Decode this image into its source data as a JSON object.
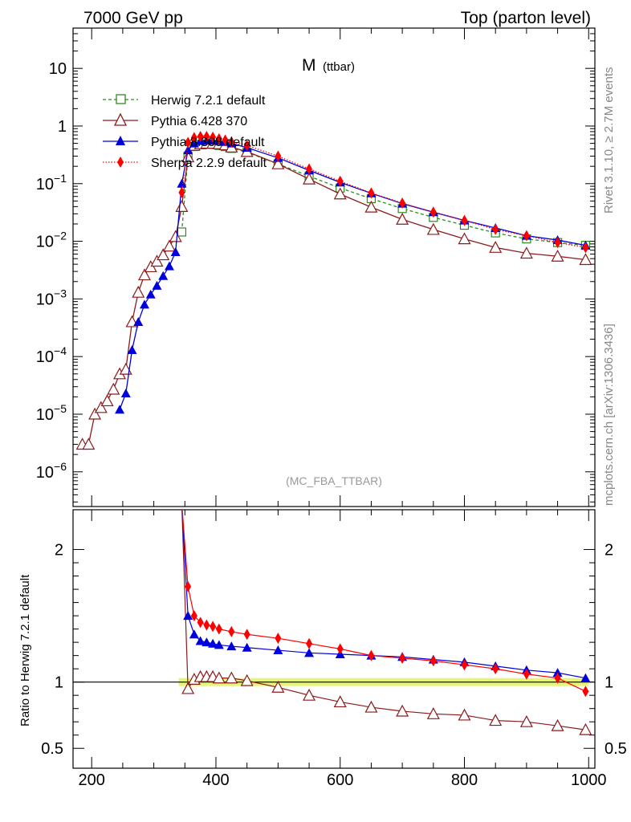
{
  "header": {
    "left": "7000 GeV pp",
    "right": "Top (parton level)"
  },
  "side_labels": {
    "rivet": "Rivet 3.1.10, ≥ 2.7M events",
    "mcplots": "mcplots.cern.ch [arXiv:1306.3436]"
  },
  "observable": {
    "main": "M",
    "sub": "(ttbar)"
  },
  "analysis_tag": "(MC_FBA_TTBAR)",
  "ratio_ylabel": "Ratio to Herwig 7.2.1 default",
  "colors": {
    "herwig": "#2e8b1e",
    "pythia6": "#8b1a1a",
    "pythia8": "#0000dd",
    "sherpa": "#ff0000",
    "band": "#e6f57a"
  },
  "chart_data": [
    {
      "type": "line",
      "panel": "main",
      "yscale": "log",
      "xlim": [
        170,
        1010
      ],
      "ylim": [
        2.5e-07,
        50
      ],
      "y_ticks": [
        {
          "v": 1e-06,
          "m": "10",
          "e": "−6"
        },
        {
          "v": 1e-05,
          "m": "10",
          "e": "−5"
        },
        {
          "v": 0.0001,
          "m": "10",
          "e": "−4"
        },
        {
          "v": 0.001,
          "m": "10",
          "e": "−3"
        },
        {
          "v": 0.01,
          "m": "10",
          "e": "−2"
        },
        {
          "v": 0.1,
          "m": "10",
          "e": "−1"
        },
        {
          "v": 1,
          "m": "1",
          "e": ""
        },
        {
          "v": 10,
          "m": "10",
          "e": ""
        }
      ],
      "legend_position": "top-left",
      "series": [
        {
          "name": "Herwig 7.2.1 default",
          "marker": "open-square",
          "linestyle": "dashed",
          "x": [
            345,
            355,
            365,
            375,
            385,
            395,
            405,
            415,
            425,
            450,
            500,
            550,
            600,
            650,
            700,
            750,
            800,
            850,
            900,
            950,
            995
          ],
          "y": [
            0.0145,
            0.3,
            0.44,
            0.48,
            0.49,
            0.48,
            0.46,
            0.44,
            0.41,
            0.35,
            0.22,
            0.135,
            0.084,
            0.055,
            0.037,
            0.026,
            0.019,
            0.014,
            0.011,
            0.0095,
            0.0085
          ]
        },
        {
          "name": "Pythia 6.428 370",
          "marker": "open-triangle",
          "linestyle": "solid",
          "x": [
            185,
            195,
            205,
            215,
            225,
            235,
            245,
            255,
            265,
            275,
            285,
            295,
            305,
            315,
            325,
            335,
            345,
            355,
            365,
            375,
            385,
            395,
            405,
            415,
            425,
            450,
            500,
            550,
            600,
            650,
            700,
            750,
            800,
            850,
            900,
            950,
            995
          ],
          "y": [
            3e-06,
            3e-06,
            1e-05,
            1.3e-05,
            1.7e-05,
            2.7e-05,
            5e-05,
            6e-05,
            0.0004,
            0.0013,
            0.0026,
            0.0036,
            0.0045,
            0.0058,
            0.0082,
            0.012,
            0.04,
            0.29,
            0.46,
            0.49,
            0.5,
            0.5,
            0.49,
            0.47,
            0.43,
            0.36,
            0.22,
            0.12,
            0.066,
            0.039,
            0.024,
            0.016,
            0.011,
            0.0078,
            0.0062,
            0.0055,
            0.0048
          ]
        },
        {
          "name": "Pythia 8.308 default",
          "marker": "filled-triangle",
          "linestyle": "solid",
          "x": [
            245,
            255,
            265,
            275,
            285,
            295,
            305,
            315,
            325,
            335,
            345,
            355,
            365,
            375,
            385,
            395,
            405,
            415,
            425,
            450,
            500,
            550,
            600,
            650,
            700,
            750,
            800,
            850,
            900,
            950,
            995
          ],
          "y": [
            1.2e-05,
            2.3e-05,
            0.00013,
            0.0004,
            0.0008,
            0.0012,
            0.0017,
            0.0025,
            0.0037,
            0.0065,
            0.1,
            0.38,
            0.5,
            0.55,
            0.56,
            0.56,
            0.55,
            0.53,
            0.5,
            0.42,
            0.28,
            0.17,
            0.105,
            0.068,
            0.045,
            0.032,
            0.023,
            0.017,
            0.0125,
            0.0105,
            0.0085
          ]
        },
        {
          "name": "Sherpa 2.2.9 default",
          "marker": "filled-diamond",
          "linestyle": "dotted",
          "x": [
            345,
            355,
            365,
            375,
            385,
            395,
            405,
            415,
            425,
            450,
            500,
            550,
            600,
            650,
            700,
            750,
            800,
            850,
            900,
            950,
            995
          ],
          "y": [
            0.07,
            0.52,
            0.63,
            0.66,
            0.66,
            0.64,
            0.6,
            0.57,
            0.53,
            0.46,
            0.3,
            0.18,
            0.11,
            0.069,
            0.046,
            0.032,
            0.023,
            0.016,
            0.0125,
            0.0095,
            0.0078
          ]
        }
      ]
    },
    {
      "type": "line",
      "panel": "ratio",
      "ylabel": "Ratio to Herwig 7.2.1 default",
      "xlim": [
        170,
        1010
      ],
      "ylim": [
        0.35,
        2.3
      ],
      "x_ticks": [
        200,
        400,
        600,
        800,
        1000
      ],
      "y_ticks": [
        0.5,
        1,
        2
      ],
      "reference_line": 1,
      "band": {
        "x": [
          340,
          1000
        ],
        "low": 0.97,
        "high": 1.03
      },
      "series": [
        {
          "name": "Pythia 6.428 370",
          "x": [
            345,
            355,
            365,
            375,
            385,
            395,
            405,
            425,
            450,
            500,
            550,
            600,
            650,
            700,
            750,
            800,
            850,
            900,
            950,
            995
          ],
          "y": [
            2.35,
            0.95,
            1.02,
            1.04,
            1.04,
            1.04,
            1.03,
            1.03,
            1.01,
            0.96,
            0.9,
            0.85,
            0.81,
            0.78,
            0.76,
            0.75,
            0.71,
            0.7,
            0.67,
            0.64
          ]
        },
        {
          "name": "Pythia 8.308 default",
          "x": [
            345,
            355,
            365,
            375,
            385,
            395,
            405,
            425,
            450,
            500,
            550,
            600,
            650,
            700,
            750,
            800,
            850,
            900,
            950,
            995
          ],
          "y": [
            2.35,
            1.5,
            1.36,
            1.31,
            1.3,
            1.29,
            1.28,
            1.27,
            1.26,
            1.24,
            1.22,
            1.21,
            1.2,
            1.19,
            1.17,
            1.15,
            1.12,
            1.09,
            1.07,
            1.03
          ]
        },
        {
          "name": "Sherpa 2.2.9 default",
          "x": [
            345,
            355,
            365,
            375,
            385,
            395,
            405,
            425,
            450,
            500,
            550,
            600,
            650,
            700,
            750,
            800,
            850,
            900,
            950,
            995
          ],
          "y": [
            2.35,
            1.72,
            1.5,
            1.45,
            1.43,
            1.42,
            1.4,
            1.38,
            1.36,
            1.33,
            1.29,
            1.25,
            1.2,
            1.18,
            1.16,
            1.13,
            1.1,
            1.06,
            1.03,
            0.93
          ]
        }
      ]
    }
  ]
}
